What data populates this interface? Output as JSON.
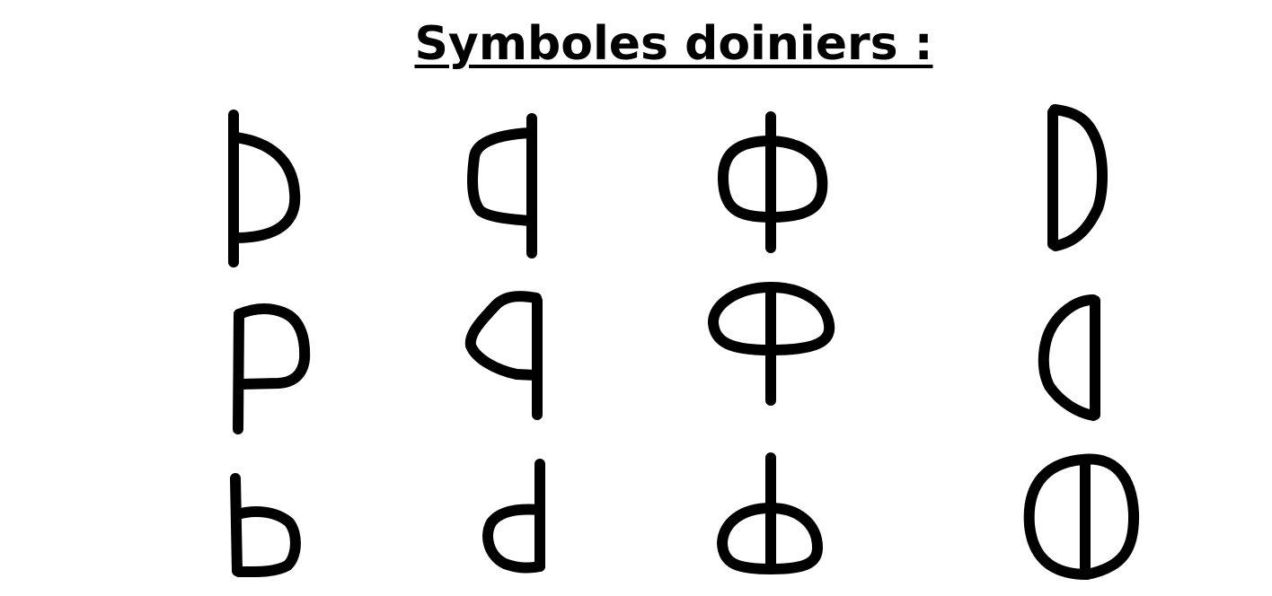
{
  "title": "Symboles doiniers :",
  "colors": {
    "background": "#ffffff",
    "ink": "#000000"
  },
  "symbols": [
    {
      "name": "symbol-vertical-bar-upper-right-bowl"
    },
    {
      "name": "symbol-vertical-bar-upper-left-bowl"
    },
    {
      "name": "symbol-vertical-bar-centered-oval"
    },
    {
      "name": "symbol-right-half-circle"
    },
    {
      "name": "symbol-p-shape"
    },
    {
      "name": "symbol-reversed-p-shape"
    },
    {
      "name": "symbol-phi-upper-oval"
    },
    {
      "name": "symbol-left-half-circle"
    },
    {
      "name": "symbol-b-shape"
    },
    {
      "name": "symbol-d-shape"
    },
    {
      "name": "symbol-phi-lower-oval"
    },
    {
      "name": "symbol-circle-vertical-bar"
    }
  ]
}
